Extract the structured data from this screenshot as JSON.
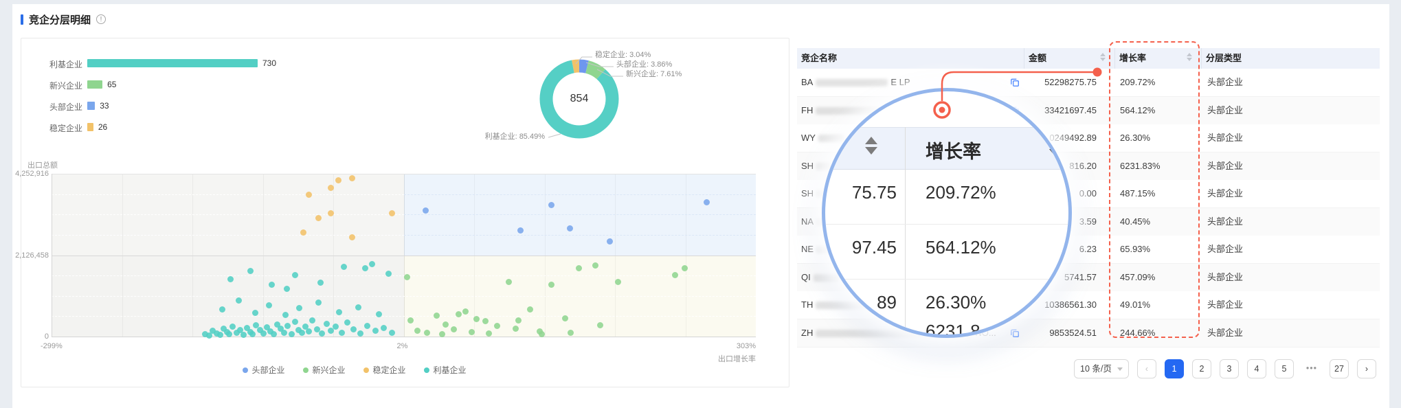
{
  "header": {
    "title": "竞企分层明细",
    "info_icon": "!"
  },
  "chart_data": [
    {
      "type": "bar",
      "orientation": "horizontal",
      "categories": [
        "利基企业",
        "新兴企业",
        "头部企业",
        "稳定企业"
      ],
      "values": [
        730,
        65,
        33,
        26
      ],
      "colors": [
        "#52CFC4",
        "#8FD58F",
        "#7AA6EC",
        "#F2C269"
      ]
    },
    {
      "type": "pie",
      "donut": true,
      "center_total": "854",
      "labels": [
        "稳定企业: 3.04%",
        "头部企业: 3.86%",
        "新兴企业: 7.61%",
        "利基企业: 85.49%"
      ],
      "slices": [
        {
          "name": "稳定企业",
          "pct": 3.04,
          "color": "#F2C269"
        },
        {
          "name": "头部企业",
          "pct": 3.86,
          "color": "#6E97EE"
        },
        {
          "name": "新兴企业",
          "pct": 7.61,
          "color": "#8FD58F"
        },
        {
          "name": "利基企业",
          "pct": 85.49,
          "color": "#55CFC5"
        }
      ]
    },
    {
      "type": "scatter",
      "xlabel": "出口增长率",
      "ylabel": "出口总额",
      "xlim": [
        -299,
        303
      ],
      "ylim": [
        0,
        4252916
      ],
      "x_ticks": [
        "-299%",
        "2%",
        "303%"
      ],
      "y_ticks": [
        "4,252,916",
        "2,126,458",
        "0"
      ],
      "legend_position": "bottom",
      "series": [
        {
          "name": "头部企业",
          "color": "#7AA6EC",
          "points": [
            [
              21,
              3300000
            ],
            [
              102,
              2780000
            ],
            [
              128,
              3430000
            ],
            [
              144,
              2820000
            ],
            [
              178,
              2480000
            ],
            [
              261,
              3500000
            ]
          ]
        },
        {
          "name": "新兴企业",
          "color": "#8FD58F",
          "points": [
            [
              5,
              1550000
            ],
            [
              8,
              420000
            ],
            [
              14,
              160000
            ],
            [
              22,
              90000
            ],
            [
              30,
              540000
            ],
            [
              38,
              310000
            ],
            [
              45,
              190000
            ],
            [
              49,
              590000
            ],
            [
              55,
              660000
            ],
            [
              64,
              450000
            ],
            [
              72,
              410000
            ],
            [
              82,
              270000
            ],
            [
              92,
              1420000
            ],
            [
              100,
              430000
            ],
            [
              110,
              710000
            ],
            [
              118,
              130000
            ],
            [
              128,
              1360000
            ],
            [
              140,
              470000
            ],
            [
              152,
              1780000
            ],
            [
              166,
              1850000
            ],
            [
              185,
              1420000
            ],
            [
              234,
              1600000
            ],
            [
              242,
              1780000
            ],
            [
              120,
              60000
            ],
            [
              75,
              80000
            ],
            [
              35,
              70000
            ],
            [
              60,
              120000
            ],
            [
              98,
              200000
            ],
            [
              145,
              90000
            ],
            [
              170,
              300000
            ]
          ]
        },
        {
          "name": "稳定企业",
          "color": "#F2C269",
          "points": [
            [
              -54,
              4090000
            ],
            [
              -42,
              4130000
            ],
            [
              -60,
              3880000
            ],
            [
              -79,
              3710000
            ],
            [
              -60,
              3230000
            ],
            [
              -71,
              3100000
            ],
            [
              -8,
              3230000
            ],
            [
              -84,
              2710000
            ],
            [
              -42,
              2600000
            ]
          ]
        },
        {
          "name": "利基企业",
          "color": "#52CFC4",
          "points": [
            [
              -168,
              60000
            ],
            [
              -164,
              30000
            ],
            [
              -161,
              150000
            ],
            [
              -158,
              80000
            ],
            [
              -155,
              45000
            ],
            [
              -152,
              200000
            ],
            [
              -149,
              110000
            ],
            [
              -147,
              55000
            ],
            [
              -144,
              260000
            ],
            [
              -141,
              95000
            ],
            [
              -138,
              170000
            ],
            [
              -135,
              45000
            ],
            [
              -132,
              230000
            ],
            [
              -129,
              125000
            ],
            [
              -127,
              65000
            ],
            [
              -124,
              300000
            ],
            [
              -121,
              175000
            ],
            [
              -118,
              85000
            ],
            [
              -115,
              240000
            ],
            [
              -112,
              135000
            ],
            [
              -109,
              55000
            ],
            [
              -106,
              320000
            ],
            [
              -103,
              205000
            ],
            [
              -100,
              105000
            ],
            [
              -97,
              280000
            ],
            [
              -94,
              65000
            ],
            [
              -91,
              380000
            ],
            [
              -88,
              165000
            ],
            [
              -85,
              95000
            ],
            [
              -82,
              255000
            ],
            [
              -79,
              135000
            ],
            [
              -76,
              420000
            ],
            [
              -72,
              195000
            ],
            [
              -68,
              75000
            ],
            [
              -64,
              335000
            ],
            [
              -60,
              155000
            ],
            [
              -56,
              265000
            ],
            [
              -51,
              105000
            ],
            [
              -46,
              365000
            ],
            [
              -41,
              185000
            ],
            [
              -35,
              85000
            ],
            [
              -29,
              275000
            ],
            [
              -22,
              145000
            ],
            [
              -15,
              225000
            ],
            [
              -8,
              95000
            ],
            [
              -153,
              700000
            ],
            [
              -139,
              950000
            ],
            [
              -125,
              620000
            ],
            [
              -113,
              820000
            ],
            [
              -99,
              560000
            ],
            [
              -87,
              740000
            ],
            [
              -71,
              880000
            ],
            [
              -53,
              640000
            ],
            [
              -37,
              760000
            ],
            [
              -19,
              580000
            ],
            [
              -98,
              1250000
            ],
            [
              -146,
              1500000
            ],
            [
              -129,
              1720000
            ],
            [
              -111,
              1350000
            ],
            [
              -91,
              1600000
            ],
            [
              -69,
              1400000
            ],
            [
              -49,
              1820000
            ],
            [
              -31,
              1780000
            ],
            [
              -11,
              1650000
            ],
            [
              -25,
              1900000
            ]
          ]
        }
      ]
    }
  ],
  "table": {
    "columns": [
      {
        "label": "竞企名称",
        "sortable": false
      },
      {
        "label": "金额",
        "sortable": true
      },
      {
        "label": "增长率",
        "sortable": true
      },
      {
        "label": "分层类型",
        "sortable": false
      }
    ],
    "rows": [
      {
        "name_prefix": "BA",
        "blur_w": 105,
        "name_suffix": "E LP",
        "copy": true,
        "amount": "52298275.75",
        "growth": "209.72%",
        "type": "头部企业"
      },
      {
        "name_prefix": "FH",
        "blur_w": 95,
        "name_suffix": "",
        "copy": true,
        "amount": "33421697.45",
        "growth": "564.12%",
        "type": "头部企业"
      },
      {
        "name_prefix": "WY",
        "blur_w": 38,
        "name_suffix": "",
        "copy": false,
        "amount": "0249492.89",
        "growth": "26.30%",
        "type": "头部企业"
      },
      {
        "name_prefix": "SH",
        "blur_w": 22,
        "name_suffix": "",
        "copy": false,
        "amount": "816.20",
        "growth": "6231.83%",
        "type": "头部企业"
      },
      {
        "name_prefix": "SH",
        "blur_w": 14,
        "name_suffix": "",
        "copy": false,
        "amount": "0.00",
        "growth": "487.15%",
        "type": "头部企业"
      },
      {
        "name_prefix": "NA",
        "blur_w": 16,
        "name_suffix": "",
        "copy": false,
        "amount": "3.59",
        "growth": "40.45%",
        "type": "头部企业"
      },
      {
        "name_prefix": "NE",
        "blur_w": 20,
        "name_suffix": "",
        "copy": false,
        "amount": "6.23",
        "growth": "65.93%",
        "type": "头部企业"
      },
      {
        "name_prefix": "QI",
        "blur_w": 38,
        "name_suffix": "",
        "copy": false,
        "amount": "5741.57",
        "growth": "457.09%",
        "type": "头部企业"
      },
      {
        "name_prefix": "TH",
        "blur_w": 80,
        "name_suffix": "",
        "copy": false,
        "amount": "10386561.30",
        "growth": "49.01%",
        "type": "头部企业"
      },
      {
        "name_prefix": "ZH",
        "blur_w": 228,
        "name_suffix": "NO...",
        "copy": true,
        "amount": "9853524.51",
        "growth": "244.66%",
        "type": "头部企业"
      }
    ]
  },
  "magnifier": {
    "header": "增长率",
    "rows": [
      {
        "amount_fragment": "75.75",
        "growth": "209.72%"
      },
      {
        "amount_fragment": "97.45",
        "growth": "564.12%"
      },
      {
        "amount_fragment": "89",
        "growth": "26.30%"
      },
      {
        "amount_fragment": "",
        "growth": "6231.8"
      }
    ]
  },
  "pagination": {
    "page_size_label": "10 条/页",
    "prev": "‹",
    "next": "›",
    "pages": [
      "1",
      "2",
      "3",
      "4",
      "5",
      "•••",
      "27"
    ],
    "active_page": "1"
  }
}
